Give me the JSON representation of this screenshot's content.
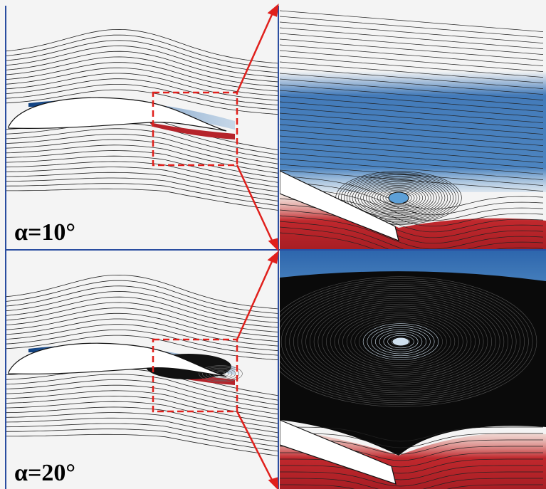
{
  "panels": [
    {
      "label": "α=10°"
    },
    {
      "label": "α=20°"
    }
  ]
}
